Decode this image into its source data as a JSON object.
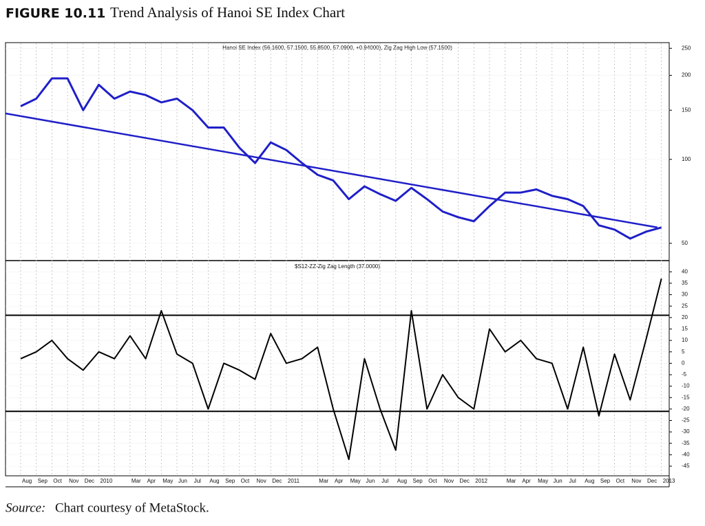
{
  "figure": {
    "label": "FIGURE 10.11",
    "title": "Trend Analysis of Hanoi SE Index Chart"
  },
  "source": {
    "label": "Source:",
    "text": "Chart courtesy of MetaStock."
  },
  "chart_data": [
    {
      "type": "line",
      "title": "Hanoi SE Index  (56.1600, 57.1500, 55.8500, 57.0900, +0.94000), Zig Zag High Low (57.1500)",
      "log_scale": true,
      "ylim": [
        43.6,
        262
      ],
      "yticks": [
        50,
        100,
        150,
        200,
        250
      ],
      "grid": true,
      "series": [
        {
          "color": "#1f1fc8",
          "values": [
            155,
            165,
            195,
            195,
            150,
            185,
            165,
            175,
            170,
            160,
            165,
            150,
            130,
            130,
            110,
            97,
            115,
            108,
            97,
            88,
            84,
            72,
            80,
            75,
            71,
            79,
            72,
            65,
            62,
            60,
            68,
            76,
            76,
            78,
            74,
            72,
            68,
            58,
            56,
            52,
            55,
            57
          ]
        }
      ],
      "trendline": {
        "color": "#1f1fc8",
        "values": [
          146,
          57
        ]
      }
    },
    {
      "type": "line",
      "title": "$S12-ZZ-Zig Zag Length (37.0000)",
      "categories": [
        "Aug",
        "Sep",
        "Oct",
        "Nov",
        "Dec",
        "2010",
        null,
        "Mar",
        "Apr",
        "May",
        "Jun",
        "Jul",
        "Aug",
        "Sep",
        "Oct",
        "Nov",
        "Dec",
        "2011",
        null,
        "Mar",
        "Apr",
        "May",
        "Jun",
        "Jul",
        "Aug",
        "Sep",
        "Oct",
        "Nov",
        "Dec",
        "2012",
        null,
        "Mar",
        "Apr",
        "May",
        "Jun",
        "Jul",
        "Aug",
        "Sep",
        "Oct",
        "Nov",
        "Dec",
        "2013"
      ],
      "ylim": [
        -49.2,
        44.6
      ],
      "yticks": [
        -45,
        -40,
        -35,
        -30,
        -25,
        -20,
        -15,
        -10,
        -5,
        0,
        5,
        10,
        15,
        20,
        25,
        30,
        35,
        40
      ],
      "grid": true,
      "hlines": [
        21,
        -21
      ],
      "series": [
        {
          "color": "#000000",
          "values": [
            2,
            5,
            10,
            2,
            -3,
            5,
            2,
            12,
            2,
            23,
            4,
            0,
            -20,
            0,
            -3,
            -7,
            13,
            0,
            2,
            7,
            -20,
            -42,
            2,
            -20,
            -38,
            23,
            -20,
            -5,
            -15,
            -20,
            15,
            5,
            10,
            2,
            0,
            -20,
            7,
            -23,
            4,
            -16,
            10,
            37
          ]
        }
      ]
    }
  ]
}
